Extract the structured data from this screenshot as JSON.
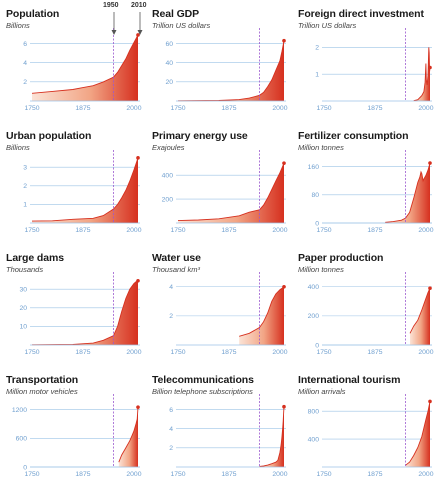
{
  "markers": {
    "first": "1950",
    "second": "2010"
  },
  "colors": {
    "area_light": "#fbe3d6",
    "area_dark": "#d6301f",
    "gridline": "#9cc3e6",
    "tick_label": "#6f9fcf",
    "marker_line": "#9b59d0",
    "endpoint": "#d6301f"
  },
  "chart_data": [
    {
      "type": "area",
      "title": "Population",
      "subtitle": "Billions",
      "xticks": [
        "1750",
        "1875",
        "2000"
      ],
      "yticks": [
        "2",
        "4",
        "6"
      ],
      "xlim": [
        1750,
        2010
      ],
      "ylim": [
        0,
        7
      ],
      "x": [
        1750,
        1800,
        1850,
        1875,
        1900,
        1925,
        1950,
        1960,
        1970,
        1980,
        1990,
        2000,
        2010
      ],
      "y": [
        0.8,
        1.0,
        1.2,
        1.4,
        1.6,
        2.0,
        2.5,
        3.0,
        3.7,
        4.4,
        5.3,
        6.1,
        6.9
      ]
    },
    {
      "type": "area",
      "title": "Real GDP",
      "subtitle": "Trillion US dollars",
      "xticks": [
        "1750",
        "1875",
        "2000"
      ],
      "yticks": [
        "20",
        "40",
        "60"
      ],
      "xlim": [
        1750,
        2010
      ],
      "ylim": [
        0,
        70
      ],
      "x": [
        1750,
        1850,
        1900,
        1925,
        1950,
        1960,
        1970,
        1980,
        1990,
        2000,
        2005,
        2010
      ],
      "y": [
        0.2,
        0.5,
        1.5,
        3,
        6,
        9,
        15,
        22,
        32,
        42,
        52,
        63
      ]
    },
    {
      "type": "area",
      "title": "Foreign direct investment",
      "subtitle": "Trillion US dollars",
      "xticks": [
        "1750",
        "1875",
        "2000"
      ],
      "yticks": [
        "1",
        "2"
      ],
      "xlim": [
        1750,
        2010
      ],
      "ylim": [
        0,
        2.5
      ],
      "x": [
        1970,
        1980,
        1990,
        1995,
        1998,
        2000,
        2001,
        2003,
        2005,
        2007,
        2008,
        2009,
        2010
      ],
      "y": [
        0.01,
        0.05,
        0.2,
        0.35,
        0.7,
        1.4,
        0.8,
        0.6,
        0.95,
        2.0,
        1.8,
        1.1,
        1.25
      ]
    },
    {
      "type": "area",
      "title": "Urban population",
      "subtitle": "Billions",
      "xticks": [
        "1750",
        "1875",
        "2000"
      ],
      "yticks": [
        "1",
        "2",
        "3"
      ],
      "xlim": [
        1750,
        2010
      ],
      "ylim": [
        0,
        3.6
      ],
      "x": [
        1750,
        1800,
        1850,
        1900,
        1925,
        1950,
        1960,
        1970,
        1980,
        1990,
        2000,
        2010
      ],
      "y": [
        0.1,
        0.12,
        0.2,
        0.25,
        0.4,
        0.75,
        1.0,
        1.35,
        1.75,
        2.25,
        2.85,
        3.5
      ]
    },
    {
      "type": "area",
      "title": "Primary energy use",
      "subtitle": "Exajoules",
      "xticks": [
        "1750",
        "1875",
        "2000"
      ],
      "yticks": [
        "200",
        "400"
      ],
      "xlim": [
        1750,
        2010
      ],
      "ylim": [
        0,
        560
      ],
      "x": [
        1750,
        1800,
        1850,
        1900,
        1925,
        1950,
        1960,
        1970,
        1980,
        1990,
        2000,
        2010
      ],
      "y": [
        20,
        25,
        35,
        60,
        90,
        110,
        150,
        210,
        280,
        350,
        420,
        500
      ]
    },
    {
      "type": "area",
      "title": "Fertilizer consumption",
      "subtitle": "Million tonnes",
      "xticks": [
        "1750",
        "1875",
        "2000"
      ],
      "yticks": [
        "0",
        "80",
        "160"
      ],
      "xlim": [
        1750,
        2010
      ],
      "ylim": [
        0,
        190
      ],
      "x": [
        1900,
        1920,
        1940,
        1950,
        1960,
        1970,
        1980,
        1985,
        1988,
        1990,
        1993,
        1995,
        2000,
        2005,
        2010
      ],
      "y": [
        2,
        4,
        8,
        14,
        30,
        70,
        115,
        130,
        145,
        140,
        120,
        125,
        135,
        150,
        170
      ]
    },
    {
      "type": "area",
      "title": "Large dams",
      "subtitle": "Thousands",
      "xticks": [
        "1750",
        "1875",
        "2000"
      ],
      "yticks": [
        "10",
        "20",
        "30"
      ],
      "xlim": [
        1750,
        2010
      ],
      "ylim": [
        0,
        36
      ],
      "x": [
        1750,
        1850,
        1900,
        1925,
        1950,
        1960,
        1970,
        1980,
        1990,
        2000,
        2005,
        2010
      ],
      "y": [
        0.1,
        0.3,
        1,
        2.5,
        5,
        10,
        18,
        25,
        30,
        33,
        34,
        34.5
      ]
    },
    {
      "type": "area",
      "title": "Water use",
      "subtitle": "Thousand km³",
      "xticks": [
        "1750",
        "1875",
        "2000"
      ],
      "yticks": [
        "2",
        "4"
      ],
      "xlim": [
        1750,
        2010
      ],
      "ylim": [
        0,
        4.6
      ],
      "x": [
        1900,
        1925,
        1950,
        1960,
        1970,
        1980,
        1990,
        2000,
        2005,
        2010
      ],
      "y": [
        0.6,
        0.8,
        1.2,
        1.6,
        2.2,
        3.0,
        3.5,
        3.8,
        3.9,
        4.0
      ]
    },
    {
      "type": "area",
      "title": "Paper production",
      "subtitle": "Million tonnes",
      "xticks": [
        "1750",
        "1875",
        "2000"
      ],
      "yticks": [
        "0",
        "200",
        "400"
      ],
      "xlim": [
        1750,
        2010
      ],
      "ylim": [
        0,
        460
      ],
      "x": [
        1961,
        1970,
        1980,
        1990,
        2000,
        2005,
        2010
      ],
      "y": [
        80,
        130,
        170,
        240,
        320,
        360,
        390
      ]
    },
    {
      "type": "area",
      "title": "Transportation",
      "subtitle": "Million motor vehicles",
      "xticks": [
        "1750",
        "1875",
        "2000"
      ],
      "yticks": [
        "0",
        "600",
        "1200"
      ],
      "xlim": [
        1750,
        2010
      ],
      "ylim": [
        0,
        1400
      ],
      "x": [
        1963,
        1970,
        1980,
        1990,
        1995,
        2000,
        2005,
        2008,
        2010
      ],
      "y": [
        100,
        250,
        400,
        550,
        650,
        750,
        900,
        1000,
        1250
      ]
    },
    {
      "type": "area",
      "title": "Telecommunications",
      "subtitle": "Billion telephone subscriptions",
      "xticks": [
        "1750",
        "1875",
        "2000"
      ],
      "yticks": [
        "2",
        "4",
        "6"
      ],
      "xlim": [
        1750,
        2010
      ],
      "ylim": [
        0,
        7
      ],
      "x": [
        1950,
        1960,
        1970,
        1980,
        1990,
        1995,
        2000,
        2003,
        2005,
        2007,
        2008,
        2009,
        2010
      ],
      "y": [
        0.05,
        0.1,
        0.2,
        0.35,
        0.5,
        0.7,
        1.5,
        2.3,
        3.2,
        4.2,
        4.8,
        5.6,
        6.3
      ]
    },
    {
      "type": "area",
      "title": "International tourism",
      "subtitle": "Million arrivals",
      "xticks": [
        "1750",
        "1875",
        "2000"
      ],
      "yticks": [
        "400",
        "800"
      ],
      "xlim": [
        1750,
        2010
      ],
      "ylim": [
        0,
        960
      ],
      "x": [
        1950,
        1960,
        1970,
        1980,
        1990,
        2000,
        2005,
        2010
      ],
      "y": [
        25,
        70,
        165,
        280,
        435,
        680,
        800,
        940
      ]
    }
  ]
}
